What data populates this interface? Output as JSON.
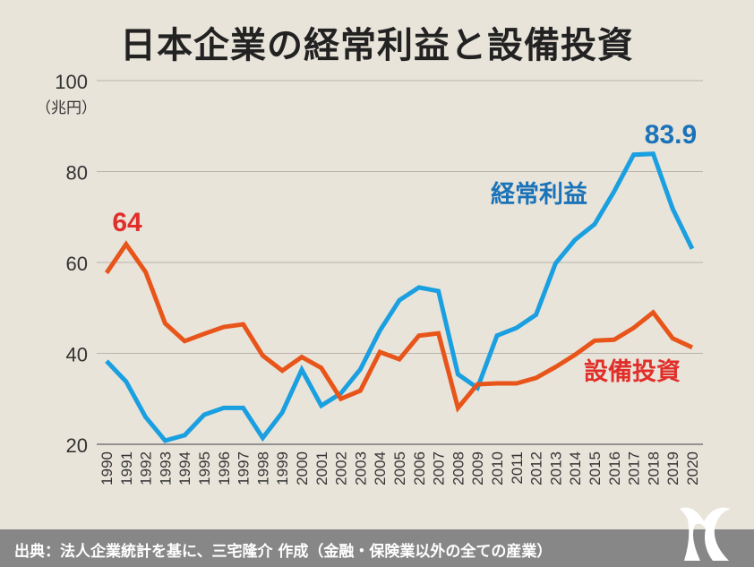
{
  "chart_data": {
    "type": "line",
    "title": "日本企業の経常利益と設備投資",
    "ylabel": "（兆円）",
    "xlabel": "",
    "ylim": [
      20,
      100
    ],
    "yticks": [
      20,
      40,
      60,
      80,
      100
    ],
    "grid": true,
    "x": [
      1990,
      1991,
      1992,
      1993,
      1994,
      1995,
      1996,
      1997,
      1998,
      1999,
      2000,
      2001,
      2002,
      2003,
      2004,
      2005,
      2006,
      2007,
      2008,
      2009,
      2010,
      2011,
      2012,
      2013,
      2014,
      2015,
      2016,
      2017,
      2018,
      2019,
      2020
    ],
    "series": [
      {
        "name": "経常利益",
        "color": "#1a9fe0",
        "label_color": "#1a73b8",
        "values": [
          38.3,
          33.8,
          26,
          20.8,
          22,
          26.5,
          28,
          28,
          21.4,
          27,
          36.4,
          28.5,
          31.2,
          36.5,
          45,
          51.7,
          54.5,
          53.7,
          35.4,
          32.4,
          43.9,
          45.6,
          48.5,
          59.8,
          65,
          68.4,
          75.6,
          83.7,
          83.9,
          71.8,
          63
        ]
      },
      {
        "name": "設備投資",
        "color": "#e8551a",
        "label_color": "#e02f2a",
        "values": [
          57.7,
          64,
          57.9,
          46.6,
          42.7,
          44.3,
          45.8,
          46.4,
          39.5,
          36.2,
          39.2,
          36.8,
          30,
          31.8,
          40.3,
          38.7,
          43.9,
          44.4,
          28,
          33.2,
          33.4,
          33.4,
          34.6,
          37,
          39.7,
          42.8,
          43,
          45.6,
          49,
          43.3,
          41.3
        ]
      }
    ],
    "annotations": [
      {
        "text": "83.9",
        "series": "経常利益",
        "x": 2018
      },
      {
        "text": "64",
        "series": "設備投資",
        "x": 1991
      }
    ]
  },
  "footer": {
    "source": "出典：法人企業統計を基に、三宅隆介 作成（金融・保険業以外の全ての産業）"
  },
  "logo": {
    "text": "M"
  }
}
